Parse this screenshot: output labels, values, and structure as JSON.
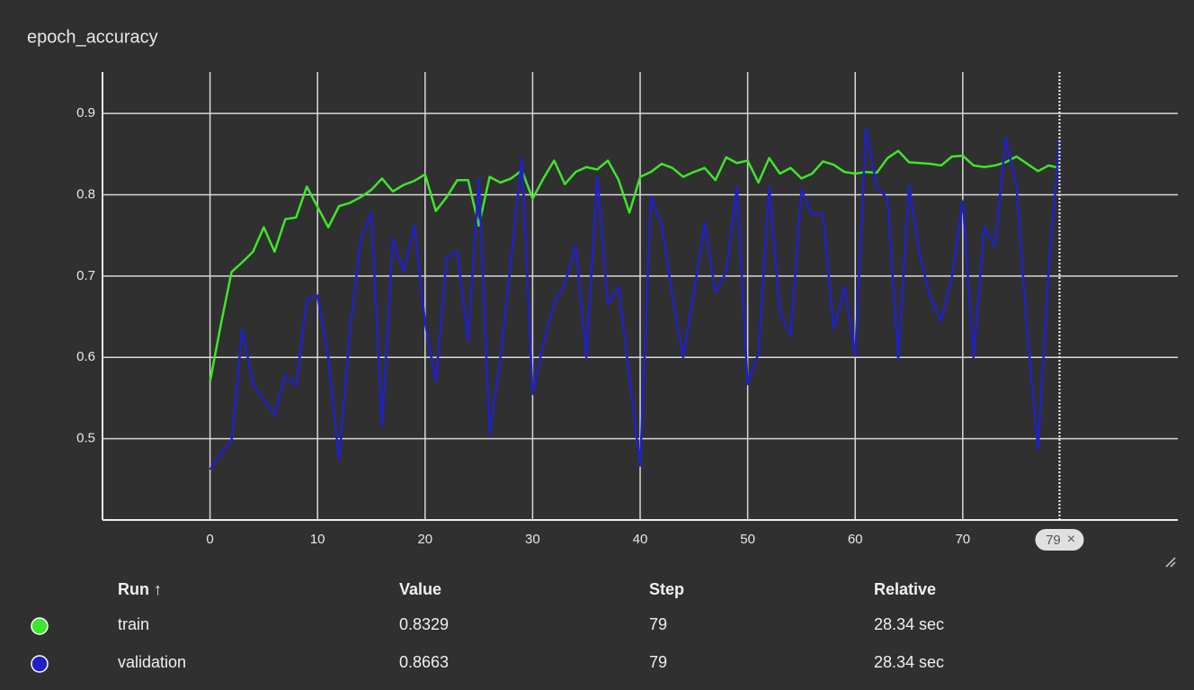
{
  "chart_data": {
    "type": "line",
    "title": "epoch_accuracy",
    "x": [
      0,
      1,
      2,
      3,
      4,
      5,
      6,
      7,
      8,
      9,
      10,
      11,
      12,
      13,
      14,
      15,
      16,
      17,
      18,
      19,
      20,
      21,
      22,
      23,
      24,
      25,
      26,
      27,
      28,
      29,
      30,
      31,
      32,
      33,
      34,
      35,
      36,
      37,
      38,
      39,
      40,
      41,
      42,
      43,
      44,
      45,
      46,
      47,
      48,
      49,
      50,
      51,
      52,
      53,
      54,
      55,
      56,
      57,
      58,
      59,
      60,
      61,
      62,
      63,
      64,
      65,
      66,
      67,
      68,
      69,
      70,
      71,
      72,
      73,
      74,
      75,
      76,
      77,
      78,
      79
    ],
    "series": [
      {
        "name": "train",
        "color": "#3ee62a",
        "values": [
          0.57,
          0.64,
          0.705,
          0.717,
          0.73,
          0.76,
          0.73,
          0.77,
          0.772,
          0.81,
          0.785,
          0.76,
          0.786,
          0.79,
          0.797,
          0.806,
          0.82,
          0.804,
          0.812,
          0.817,
          0.825,
          0.78,
          0.797,
          0.818,
          0.818,
          0.762,
          0.822,
          0.815,
          0.82,
          0.83,
          0.795,
          0.82,
          0.842,
          0.813,
          0.828,
          0.834,
          0.831,
          0.842,
          0.818,
          0.778,
          0.822,
          0.828,
          0.838,
          0.833,
          0.822,
          0.828,
          0.833,
          0.818,
          0.846,
          0.839,
          0.842,
          0.815,
          0.845,
          0.826,
          0.833,
          0.82,
          0.826,
          0.841,
          0.837,
          0.828,
          0.826,
          0.828,
          0.827,
          0.845,
          0.854,
          0.84,
          0.839,
          0.838,
          0.836,
          0.847,
          0.848,
          0.836,
          0.834,
          0.836,
          0.84,
          0.847,
          0.838,
          0.829,
          0.836,
          0.8329
        ]
      },
      {
        "name": "validation",
        "color": "#2020c8",
        "values": [
          0.462,
          0.482,
          0.497,
          0.635,
          0.567,
          0.548,
          0.53,
          0.578,
          0.565,
          0.67,
          0.676,
          0.6,
          0.473,
          0.63,
          0.745,
          0.778,
          0.515,
          0.745,
          0.705,
          0.763,
          0.643,
          0.57,
          0.722,
          0.73,
          0.62,
          0.82,
          0.505,
          0.6,
          0.72,
          0.845,
          0.555,
          0.617,
          0.667,
          0.69,
          0.737,
          0.6,
          0.822,
          0.665,
          0.687,
          0.575,
          0.467,
          0.797,
          0.763,
          0.675,
          0.6,
          0.68,
          0.765,
          0.68,
          0.705,
          0.81,
          0.567,
          0.605,
          0.81,
          0.655,
          0.628,
          0.806,
          0.775,
          0.777,
          0.635,
          0.687,
          0.602,
          0.882,
          0.81,
          0.795,
          0.598,
          0.812,
          0.725,
          0.673,
          0.645,
          0.7,
          0.792,
          0.6,
          0.76,
          0.737,
          0.87,
          0.81,
          0.63,
          0.487,
          0.71,
          0.8663
        ]
      }
    ],
    "xlim": [
      -10,
      90
    ],
    "xticks": [
      0,
      10,
      20,
      30,
      40,
      50,
      60,
      70
    ],
    "ylim": [
      0.4,
      0.951
    ],
    "yticks": [
      0.5,
      0.6,
      0.7,
      0.8,
      0.9
    ],
    "grid": true,
    "hover_step": 79,
    "hover_close": "×"
  },
  "table": {
    "headers": [
      "Run ↑",
      "Value",
      "Step",
      "Relative"
    ],
    "rows": [
      [
        "train",
        "0.8329",
        "79",
        "28.34 sec"
      ],
      [
        "validation",
        "0.8663",
        "79",
        "28.34 sec"
      ]
    ]
  }
}
